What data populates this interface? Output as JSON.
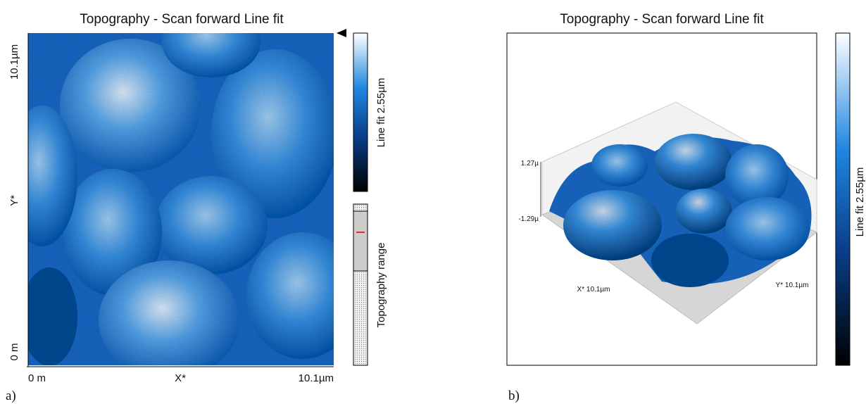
{
  "panel_a": {
    "title": "Topography - Scan forward   Line fit",
    "y_axis": {
      "top": "10.1µm",
      "middle": "Y*",
      "bottom": "0 m"
    },
    "x_axis": {
      "left": "0 m",
      "middle": "X*",
      "right": "10.1µm"
    },
    "colorbar_label": "Line fit 2.55µm",
    "range_label": "Topography range",
    "panel_label": "a)"
  },
  "panel_b": {
    "title": "Topography - Scan forward   Line fit",
    "z_top": "1.27µ",
    "z_bottom": "-1.29µ",
    "x_label": "X* 10.1µm",
    "y_label": "Y* 10.1µm",
    "colorbar_label": "Line fit 2.55µm",
    "panel_label": "b)"
  }
}
